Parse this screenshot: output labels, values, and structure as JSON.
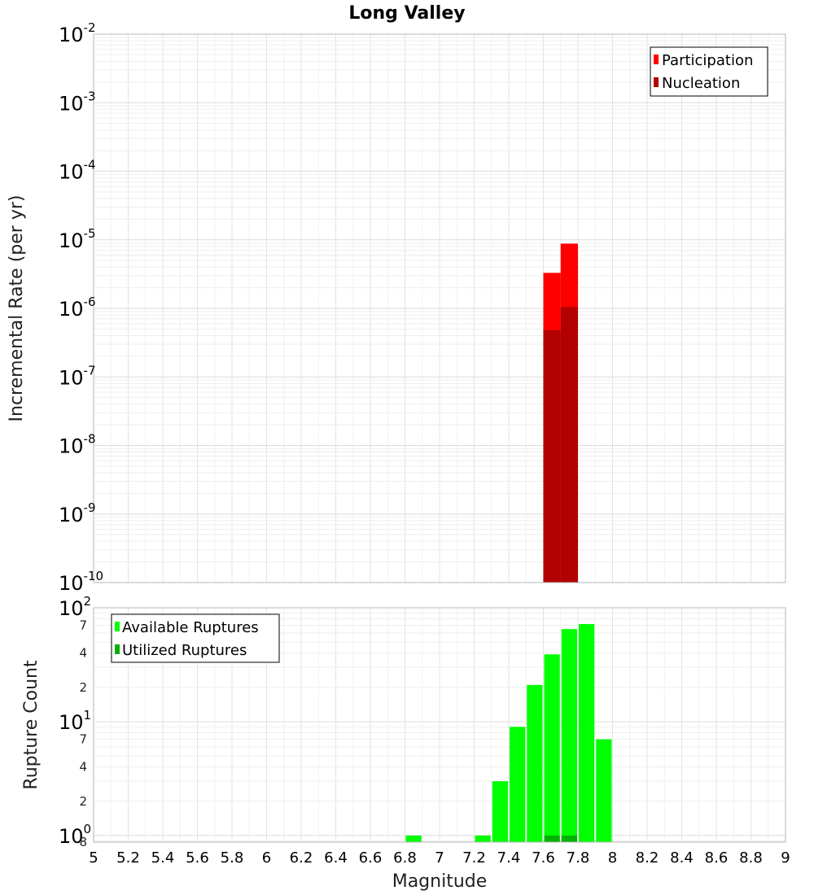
{
  "chart_data": [
    {
      "type": "bar",
      "title": "Long Valley",
      "xlabel": "",
      "ylabel": "Incremental Rate (per yr)",
      "yscale": "log",
      "xlim": [
        5,
        9
      ],
      "ylim": [
        1e-10,
        0.01
      ],
      "y_ticks": [
        {
          "base": "10",
          "exp": "-2"
        },
        {
          "base": "10",
          "exp": "-3"
        },
        {
          "base": "10",
          "exp": "-4"
        },
        {
          "base": "10",
          "exp": "-5"
        },
        {
          "base": "10",
          "exp": "-6"
        },
        {
          "base": "10",
          "exp": "-7"
        },
        {
          "base": "10",
          "exp": "-8"
        },
        {
          "base": "10",
          "exp": "-9"
        },
        {
          "base": "10",
          "exp": "-10"
        }
      ],
      "bar_width": 0.1,
      "legend_position": "top-right",
      "grid": true,
      "series": [
        {
          "name": "Participation",
          "color": "#ff0000",
          "x": [
            7.65,
            7.75
          ],
          "values": [
            3.3e-06,
            8.8e-06
          ]
        },
        {
          "name": "Nucleation",
          "color": "#b30000",
          "x": [
            7.65,
            7.75
          ],
          "values": [
            4.8e-07,
            1.05e-06
          ]
        }
      ]
    },
    {
      "type": "bar",
      "title": "",
      "xlabel": "Magnitude",
      "ylabel": "Rupture Count",
      "yscale": "log",
      "xlim": [
        5,
        9
      ],
      "ylim": [
        0.875,
        100
      ],
      "x_ticks": [
        "5",
        "5.2",
        "5.4",
        "5.6",
        "5.8",
        "6",
        "6.2",
        "6.4",
        "6.6",
        "6.8",
        "7",
        "7.2",
        "7.4",
        "7.6",
        "7.8",
        "8",
        "8.2",
        "8.4",
        "8.6",
        "8.8",
        "9"
      ],
      "y_major_ticks": [
        {
          "value": 100,
          "base": "10",
          "exp": "2"
        },
        {
          "value": 10,
          "base": "10",
          "exp": "1"
        },
        {
          "value": 1,
          "base": "10",
          "exp": "0"
        }
      ],
      "y_minor_ticks": [
        {
          "value": 70,
          "label": "7"
        },
        {
          "value": 40,
          "label": "4"
        },
        {
          "value": 20,
          "label": "2"
        },
        {
          "value": 7,
          "label": "7"
        },
        {
          "value": 4,
          "label": "4"
        },
        {
          "value": 2,
          "label": "2"
        },
        {
          "value": 0.875,
          "label": "8"
        }
      ],
      "bar_width": 0.1,
      "legend_position": "top-left",
      "grid": true,
      "series": [
        {
          "name": "Available Ruptures",
          "color": "#00ff00",
          "x": [
            6.85,
            7.25,
            7.35,
            7.45,
            7.55,
            7.65,
            7.75,
            7.85,
            7.95
          ],
          "values": [
            1,
            1,
            3,
            9,
            21,
            39,
            65,
            72,
            7
          ]
        },
        {
          "name": "Utilized Ruptures",
          "color": "#00b300",
          "x": [
            7.65,
            7.75
          ],
          "values": [
            1,
            1
          ]
        }
      ]
    }
  ]
}
